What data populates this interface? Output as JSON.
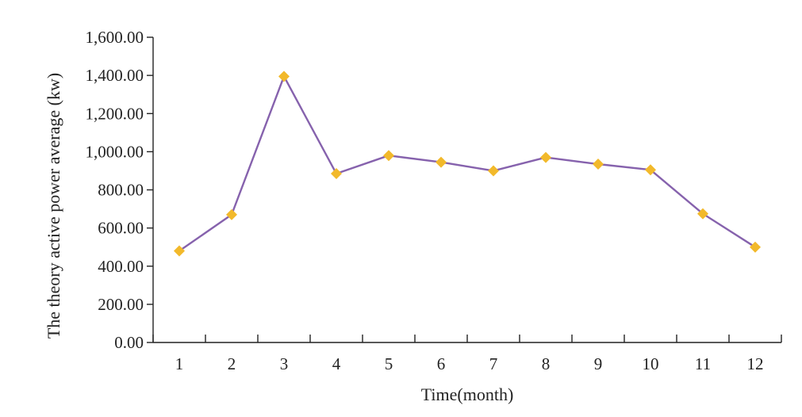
{
  "chart_data": {
    "type": "line",
    "title": "",
    "xlabel": "Time(month)",
    "ylabel": "The theory active power average (kw)",
    "categories": [
      "1",
      "2",
      "3",
      "4",
      "5",
      "6",
      "7",
      "8",
      "9",
      "10",
      "11",
      "12"
    ],
    "yticks": [
      "0.00",
      "200.00",
      "400.00",
      "600.00",
      "800.00",
      "1,000.00",
      "1,200.00",
      "1,400.00",
      "1,600.00"
    ],
    "ylim": [
      0,
      1600
    ],
    "grid": false,
    "legend": "none",
    "series": [
      {
        "values": [
          480,
          670,
          1395,
          885,
          980,
          945,
          900,
          970,
          935,
          905,
          675,
          500
        ],
        "line_color": "#8662ad",
        "marker": "diamond",
        "marker_color": "#f2b92b"
      }
    ]
  }
}
